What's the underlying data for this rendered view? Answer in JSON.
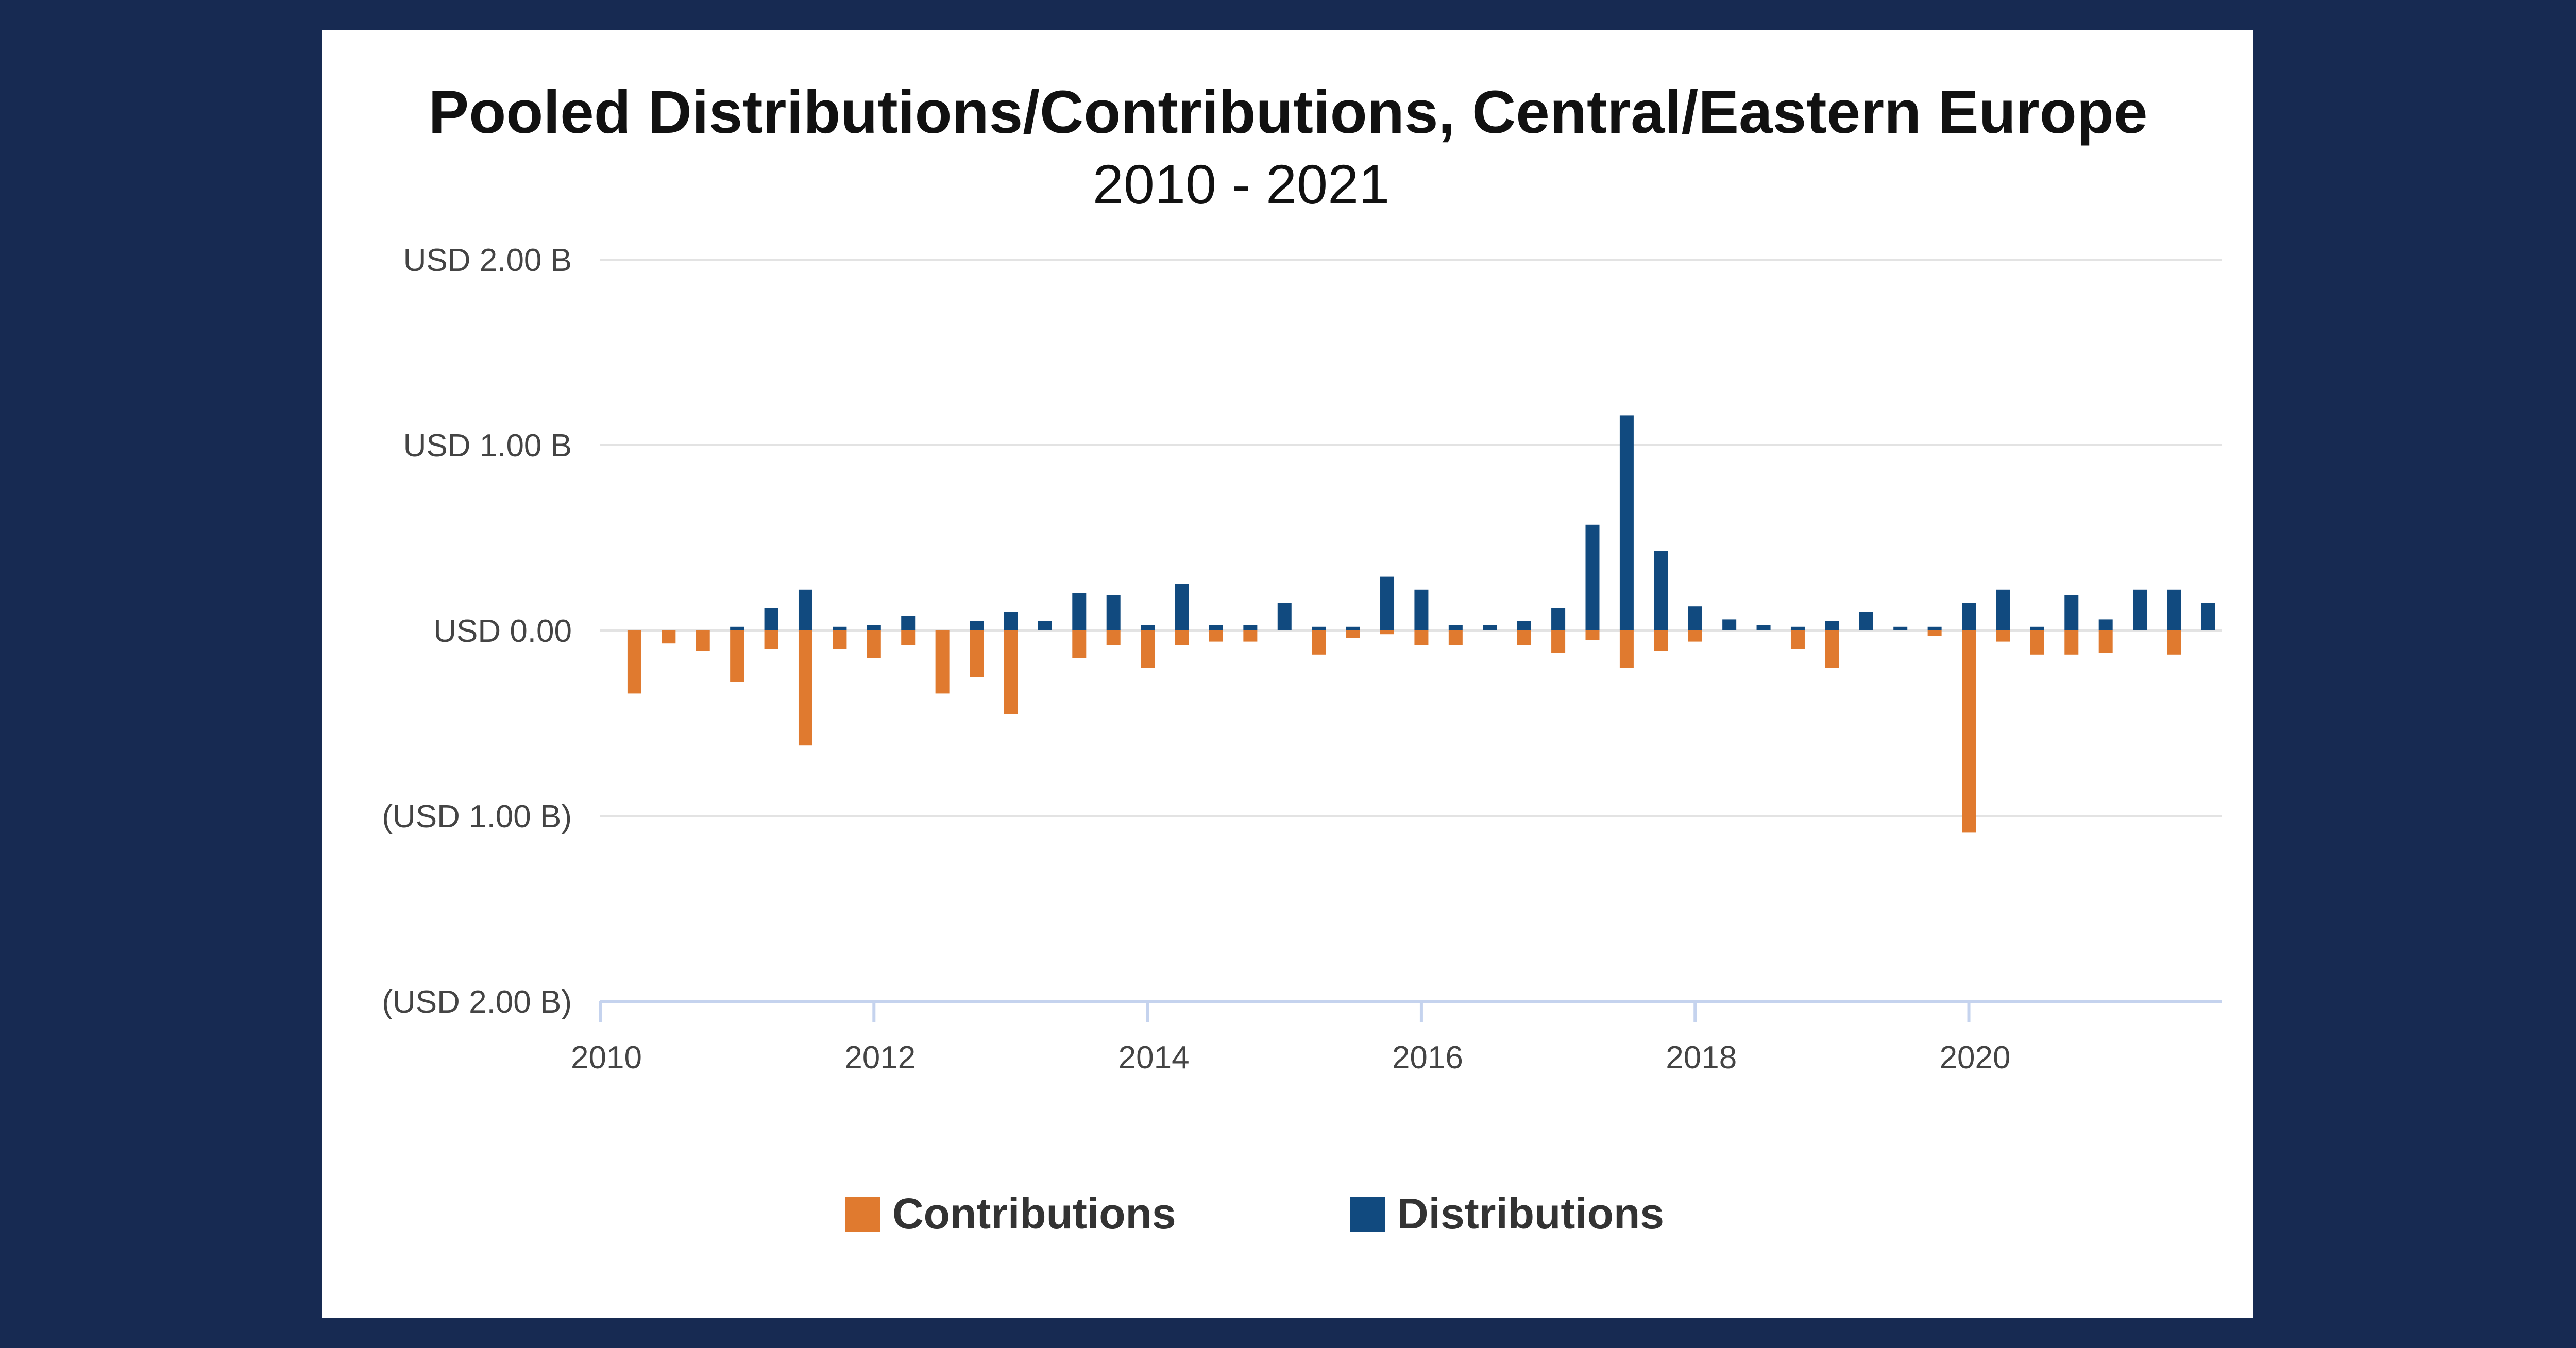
{
  "colors": {
    "background": "#172a52",
    "card": "#ffffff",
    "contributions": "#e07a2f",
    "distributions": "#114a7f",
    "grid": "#e3e3e3",
    "axis": "#c5d3ee",
    "text": "#111111",
    "tick_text": "#444444"
  },
  "chart_data": {
    "type": "bar",
    "stacked": "diverging",
    "title": "Pooled Distributions/Contributions, Central/Eastern Europe",
    "subtitle": "2010 - 2021",
    "xlabel": "",
    "ylabel": "",
    "xlim": [
      2010,
      2021.85
    ],
    "ylim": [
      -2,
      2
    ],
    "x_ticks": [
      2010,
      2012,
      2014,
      2016,
      2018,
      2020
    ],
    "x_tick_labels": [
      "2010",
      "2012",
      "2014",
      "2016",
      "2018",
      "2020"
    ],
    "y_ticks": [
      2,
      1,
      0,
      -1,
      -2
    ],
    "y_tick_labels": [
      "USD 2.00 B",
      "USD 1.00 B",
      "USD 0.00",
      "(USD 1.00 B)",
      "(USD 2.00 B)"
    ],
    "grid": true,
    "legend_position": "bottom-center",
    "x": [
      2010.25,
      2010.5,
      2010.75,
      2011.0,
      2011.25,
      2011.5,
      2011.75,
      2012.0,
      2012.25,
      2012.5,
      2012.75,
      2013.0,
      2013.25,
      2013.5,
      2013.75,
      2014.0,
      2014.25,
      2014.5,
      2014.75,
      2015.0,
      2015.25,
      2015.5,
      2015.75,
      2016.0,
      2016.25,
      2016.5,
      2016.75,
      2017.0,
      2017.25,
      2017.5,
      2017.75,
      2018.0,
      2018.25,
      2018.5,
      2018.75,
      2019.0,
      2019.25,
      2019.5,
      2019.75,
      2020.0,
      2020.25,
      2020.5,
      2020.75,
      2021.0,
      2021.25,
      2021.5,
      2021.75
    ],
    "series": [
      {
        "name": "Contributions",
        "values": [
          -0.34,
          -0.07,
          -0.11,
          -0.28,
          -0.1,
          -0.62,
          -0.1,
          -0.15,
          -0.08,
          -0.34,
          -0.25,
          -0.45,
          0,
          -0.15,
          -0.08,
          -0.2,
          -0.08,
          -0.06,
          -0.06,
          0,
          -0.13,
          -0.04,
          -0.02,
          -0.08,
          -0.08,
          0,
          -0.08,
          -0.12,
          -0.05,
          -0.2,
          -0.11,
          -0.06,
          0,
          0,
          -0.1,
          -0.2,
          0,
          0,
          -0.03,
          -1.09,
          -0.06,
          -0.13,
          -0.13,
          -0.12,
          0.09,
          -0.13,
          0
        ]
      },
      {
        "name": "Distributions",
        "values": [
          0,
          0,
          0,
          0.02,
          0.12,
          0.22,
          0.02,
          0.03,
          0.08,
          0,
          0.05,
          0.1,
          0.05,
          0.2,
          0.19,
          0.03,
          0.25,
          0.03,
          0.03,
          0.15,
          0.02,
          0.02,
          0.29,
          0.22,
          0.03,
          0.03,
          0.05,
          0.12,
          0.57,
          1.16,
          0.43,
          0.13,
          0.06,
          0.03,
          0.02,
          0.05,
          0.1,
          0.02,
          0.02,
          0.15,
          0.22,
          0.02,
          0.19,
          0.06,
          0.22,
          0.22,
          0.15
        ]
      }
    ]
  }
}
